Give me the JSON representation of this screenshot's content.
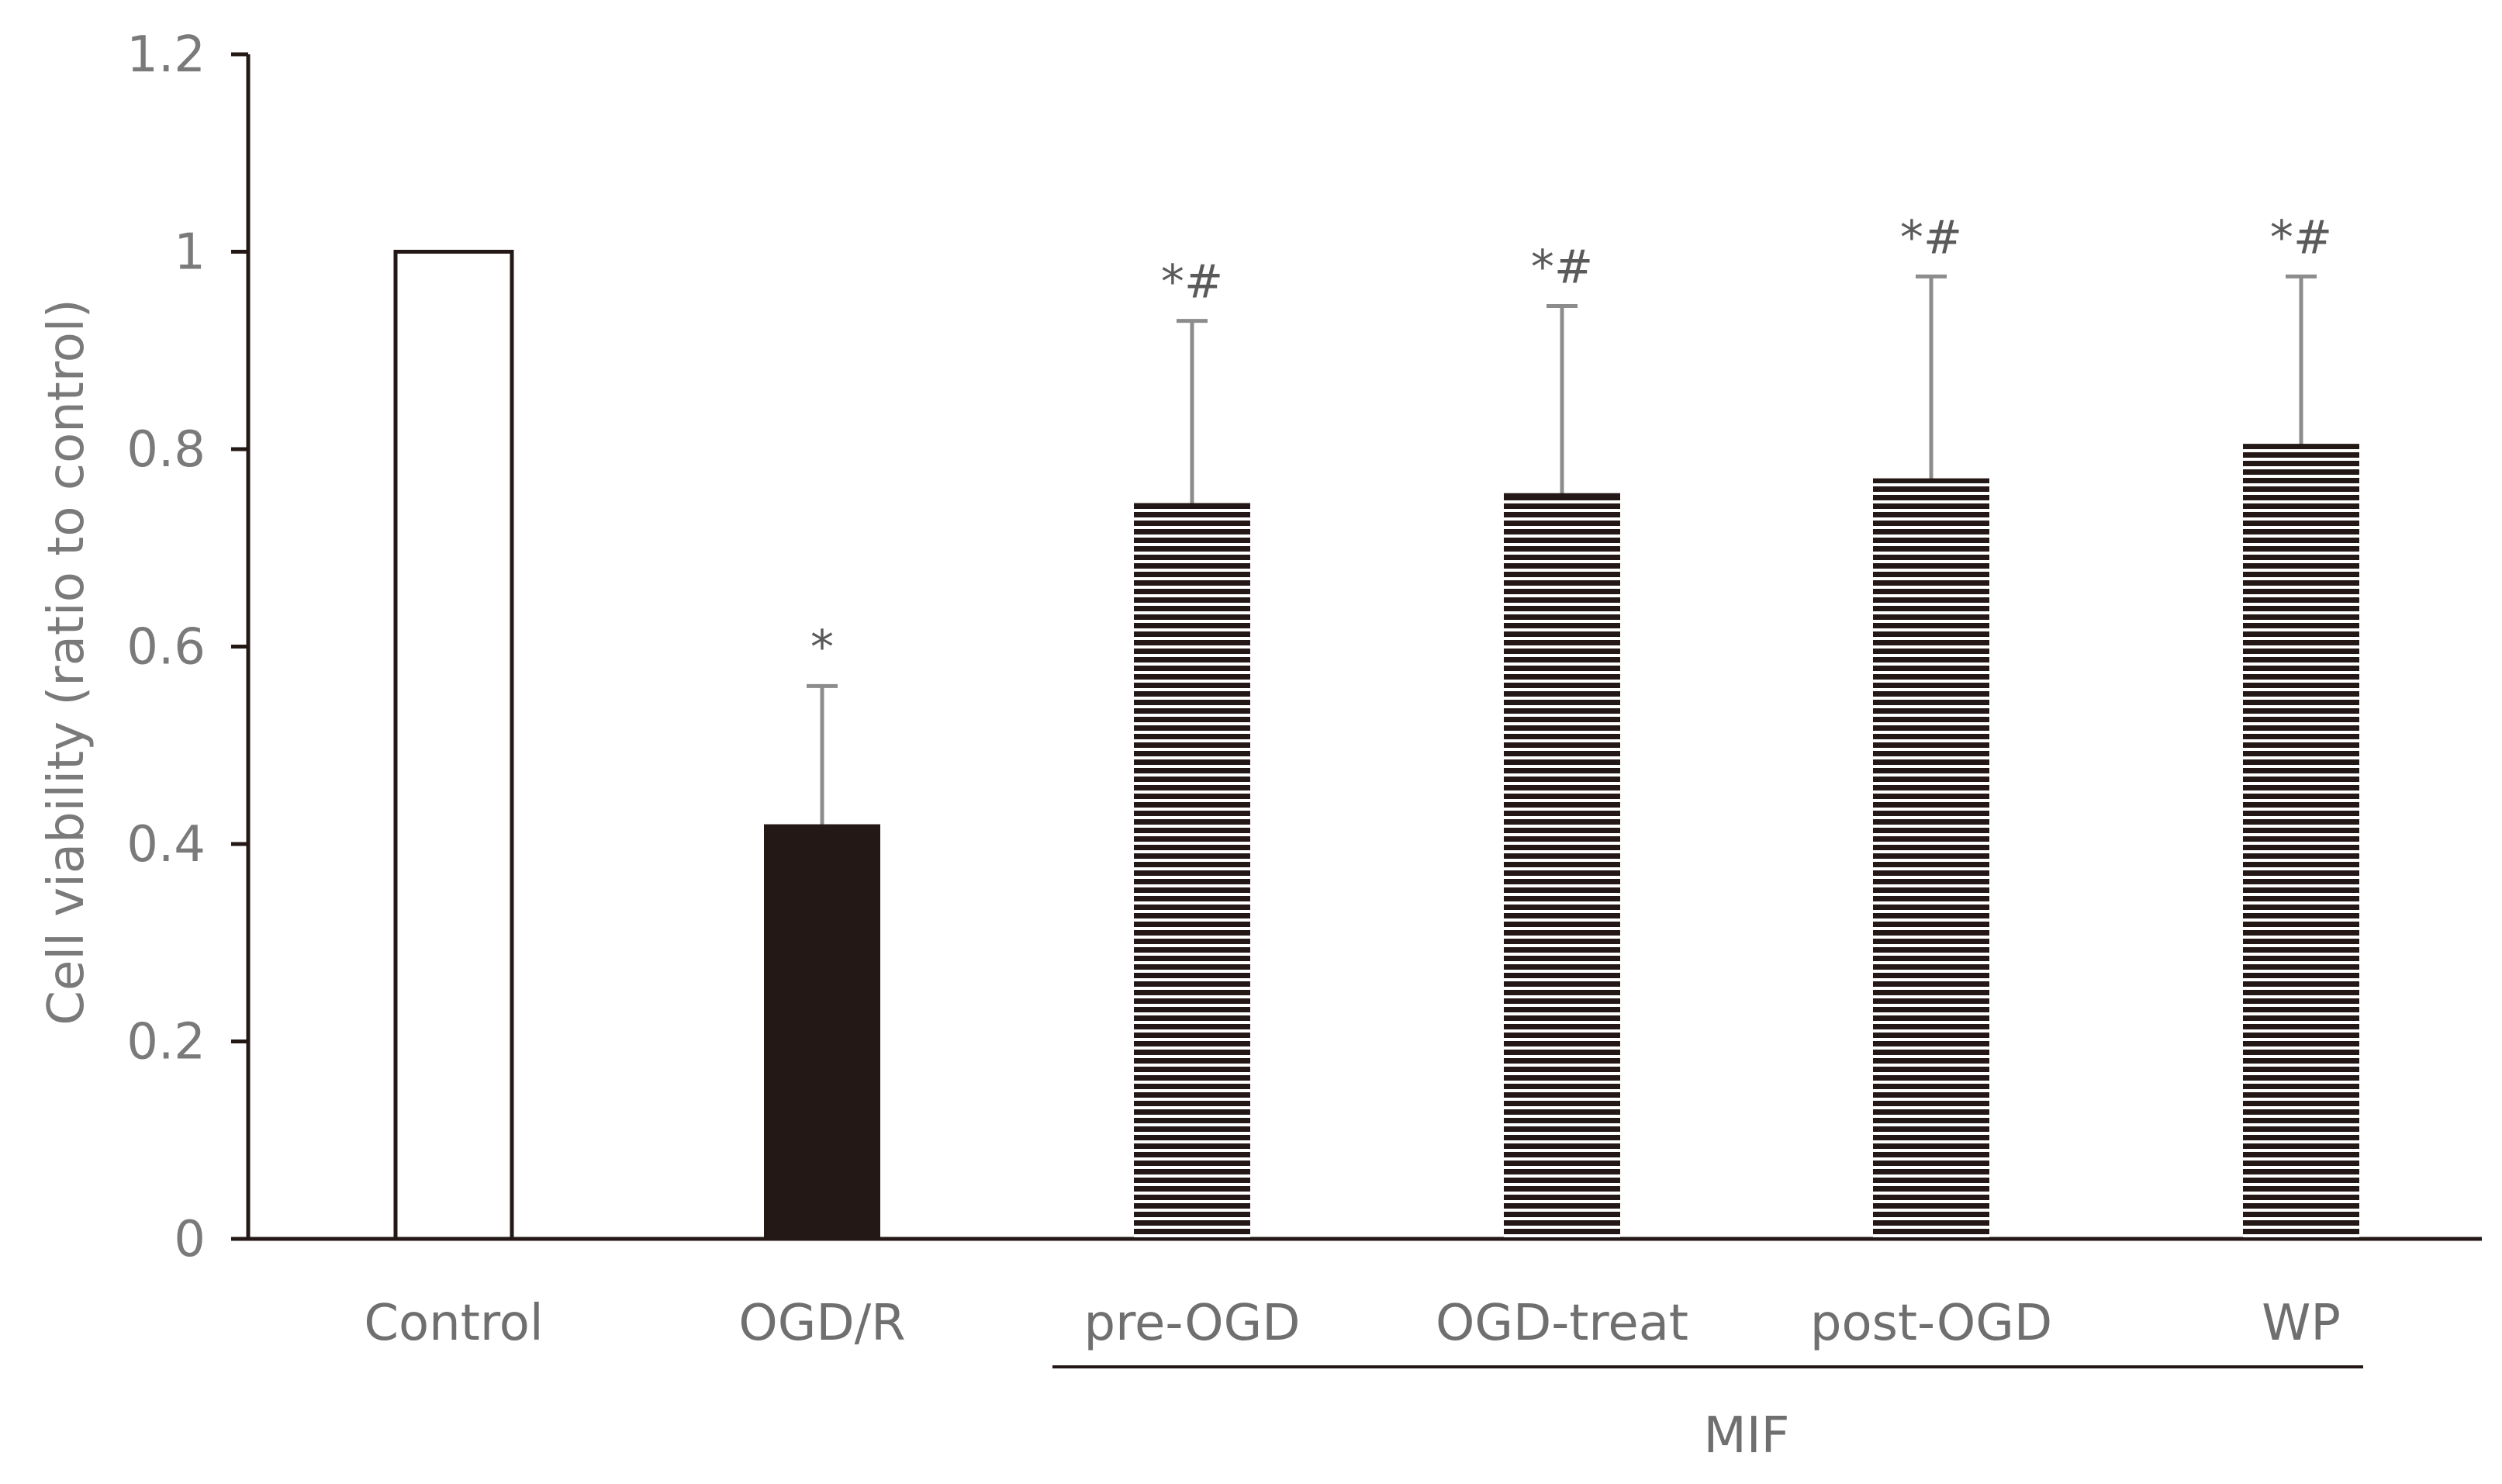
{
  "chart_data": {
    "type": "bar",
    "title": "",
    "xlabel": "",
    "ylabel": "Cell viability (ratio to control)",
    "ylim": [
      0,
      1.2
    ],
    "yticks": [
      0,
      0.2,
      0.4,
      0.6,
      0.8,
      1,
      1.2
    ],
    "ytick_labels": [
      "0",
      "0.2",
      "0.4",
      "0.6",
      "0.8",
      "1",
      "1.2"
    ],
    "categories": [
      "Control",
      "OGD/R",
      "pre-OGD",
      "OGD-treat",
      "post-OGD",
      "WP"
    ],
    "values": [
      1.0,
      0.42,
      0.745,
      0.755,
      0.77,
      0.805
    ],
    "errors": [
      0,
      0.14,
      0.185,
      0.19,
      0.205,
      0.17
    ],
    "significance": [
      "",
      "*",
      "*#",
      "*#",
      "*#",
      "*#"
    ],
    "fill_styles": [
      "white",
      "solid",
      "striped",
      "striped",
      "striped",
      "striped"
    ],
    "group_label": {
      "text": "MIF",
      "categories": [
        "pre-OGD",
        "OGD-treat",
        "post-OGD",
        "WP"
      ]
    },
    "grid": false,
    "colors": {
      "axis": "#231815",
      "bar_dark": "#231815",
      "error_bar": "#8c8c8c",
      "text": "#7a7a7a"
    }
  }
}
